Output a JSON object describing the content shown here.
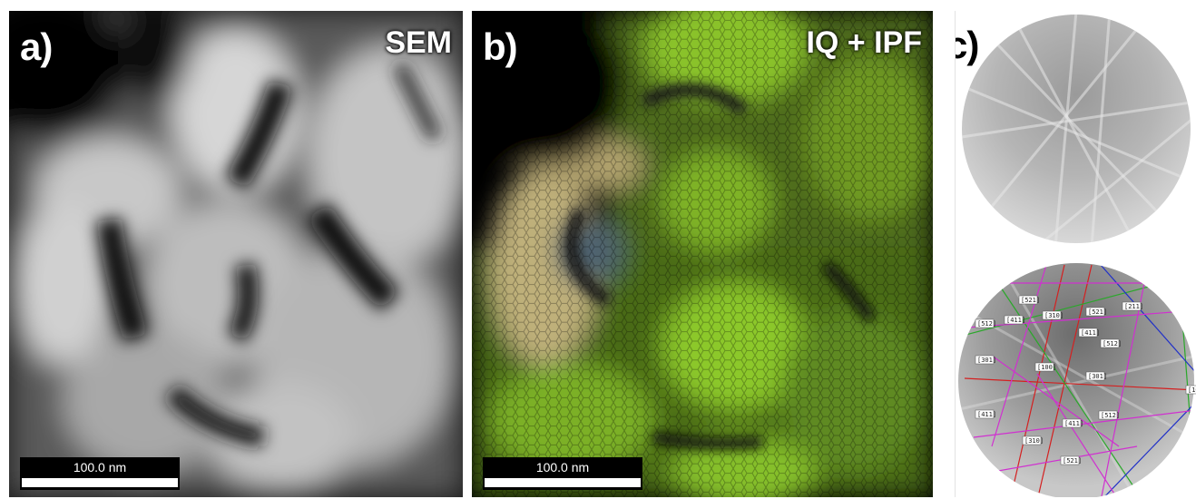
{
  "panels": {
    "a": {
      "letter": "a)",
      "tag": "SEM",
      "scalebar": "100.0 nm"
    },
    "b": {
      "letter": "b)",
      "tag": "IQ + IPF",
      "scalebar": "100.0 nm"
    },
    "c": {
      "letter": "c)"
    }
  },
  "kikuchi_labels": [
    "[521]",
    "[512]",
    "[411]",
    "[310]",
    "[521]",
    "[211]",
    "[411]",
    "[512]",
    "[301]",
    "[100]",
    "[301]",
    "[411]",
    "[411]",
    "[512]",
    "[310]",
    "[521]",
    "[10"
  ],
  "colors": {
    "band_red": "#d42020",
    "band_green": "#2aa82a",
    "band_blue": "#2030c8",
    "band_magenta": "#d030d0"
  }
}
